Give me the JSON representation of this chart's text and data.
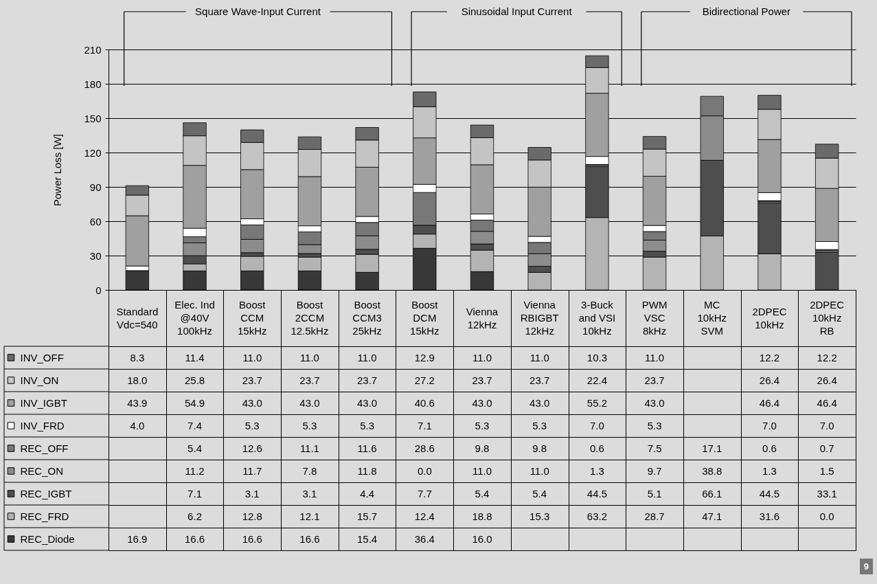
{
  "chart_data": {
    "type": "bar",
    "stacked": true,
    "ylabel": "Power Loss [W]",
    "categories": [
      "Standard\nVdc=540",
      "Elec. Ind\n@40V\n100kHz",
      "Boost\nCCM\n15kHz",
      "Boost\n2CCM\n12.5kHz",
      "Boost\nCCM3\n25kHz",
      "Boost\nDCM\n15kHz",
      "Vienna\n12kHz",
      "Vienna\nRBIGBT\n12kHz",
      "3-Buck\nand VSI\n10kHz",
      "PWM\nVSC\n8kHz",
      "MC\n10kHz\nSVM",
      "2DPEC\n10kHz",
      "2DPEC\n10kHz\nRB"
    ],
    "series": [
      {
        "name": "REC_Diode",
        "color": "#383838",
        "values": [
          16.9,
          16.6,
          16.6,
          16.6,
          15.4,
          36.4,
          16.0,
          null,
          null,
          null,
          null,
          null,
          null
        ],
        "value_labels": [
          "16.9",
          "16.6",
          "16.6",
          "16.6",
          "15.4",
          "36.4",
          "16.0",
          null,
          null,
          null,
          null,
          null,
          null
        ]
      },
      {
        "name": "REC_FRD",
        "color": "#b4b4b4",
        "values": [
          null,
          6.2,
          12.8,
          12.1,
          15.7,
          12.4,
          18.8,
          15.3,
          63.2,
          28.7,
          47.1,
          31.6,
          0.0
        ],
        "value_labels": [
          null,
          "6.2",
          "12.8",
          "12.1",
          "15.7",
          "12.4",
          "18.8",
          "15.3",
          "63.2",
          "28.7",
          "47.1",
          "31.6",
          "0.0"
        ]
      },
      {
        "name": "REC_IGBT",
        "color": "#4e4e4e",
        "values": [
          null,
          7.1,
          3.1,
          3.1,
          4.4,
          7.7,
          5.4,
          5.4,
          44.5,
          5.1,
          66.1,
          44.5,
          33.1
        ],
        "value_labels": [
          null,
          "7.1",
          "3.1",
          "3.1",
          "4.4",
          "7.7",
          "5.4",
          "5.4",
          "44.5",
          "5.1",
          "66.1",
          "44.5",
          "33.1"
        ]
      },
      {
        "name": "REC_ON",
        "color": "#8c8c8c",
        "values": [
          null,
          11.2,
          11.7,
          7.8,
          11.8,
          0.0,
          11.0,
          11.0,
          1.3,
          9.7,
          38.8,
          1.3,
          1.5
        ],
        "value_labels": [
          null,
          "11.2",
          "11.7",
          "7.8",
          "11.8",
          "0.0",
          "11.0",
          "11.0",
          "1.3",
          "9.7",
          "38.8",
          "1.3",
          "1.5"
        ]
      },
      {
        "name": "REC_OFF",
        "color": "#787878",
        "values": [
          null,
          5.4,
          12.6,
          11.1,
          11.6,
          28.6,
          9.8,
          9.8,
          0.6,
          7.5,
          17.1,
          0.6,
          0.7
        ],
        "value_labels": [
          null,
          "5.4",
          "12.6",
          "11.1",
          "11.6",
          "28.6",
          "9.8",
          "9.8",
          "0.6",
          "7.5",
          "17.1",
          "0.6",
          "0.7"
        ]
      },
      {
        "name": "INV_FRD",
        "color": "#ffffff",
        "values": [
          4.0,
          7.4,
          5.3,
          5.3,
          5.3,
          7.1,
          5.3,
          5.3,
          7.0,
          5.3,
          null,
          7.0,
          7.0
        ],
        "value_labels": [
          "4.0",
          "7.4",
          "5.3",
          "5.3",
          "5.3",
          "7.1",
          "5.3",
          "5.3",
          "7.0",
          "5.3",
          null,
          "7.0",
          "7.0"
        ]
      },
      {
        "name": "INV_IGBT",
        "color": "#a0a0a0",
        "values": [
          43.9,
          54.9,
          43.0,
          43.0,
          43.0,
          40.6,
          43.0,
          43.0,
          55.2,
          43.0,
          null,
          46.4,
          46.4
        ],
        "value_labels": [
          "43.9",
          "54.9",
          "43.0",
          "43.0",
          "43.0",
          "40.6",
          "43.0",
          "43.0",
          "55.2",
          "43.0",
          null,
          "46.4",
          "46.4"
        ]
      },
      {
        "name": "INV_ON",
        "color": "#c4c4c4",
        "values": [
          18.0,
          25.8,
          23.7,
          23.7,
          23.7,
          27.2,
          23.7,
          23.7,
          22.4,
          23.7,
          null,
          26.4,
          26.4
        ],
        "value_labels": [
          "18.0",
          "25.8",
          "23.7",
          "23.7",
          "23.7",
          "27.2",
          "23.7",
          "23.7",
          "22.4",
          "23.7",
          null,
          "26.4",
          "26.4"
        ]
      },
      {
        "name": "INV_OFF",
        "color": "#6a6a6a",
        "values": [
          8.3,
          11.4,
          11.0,
          11.0,
          11.0,
          12.9,
          11.0,
          11.0,
          10.3,
          11.0,
          null,
          12.2,
          12.2
        ],
        "value_labels": [
          "8.3",
          "11.4",
          "11.0",
          "11.0",
          "11.0",
          "12.9",
          "11.0",
          "11.0",
          "10.3",
          "11.0",
          null,
          "12.2",
          "12.2"
        ]
      }
    ],
    "ylim": [
      0,
      210
    ],
    "yticks": [
      0,
      30,
      60,
      90,
      120,
      150,
      180,
      210
    ],
    "grid": "y",
    "legend": "bottom",
    "annotations": [
      "Square Wave-Input Current",
      "Sinusoidal Input Current",
      "Bidirectional Power",
      "9"
    ]
  }
}
